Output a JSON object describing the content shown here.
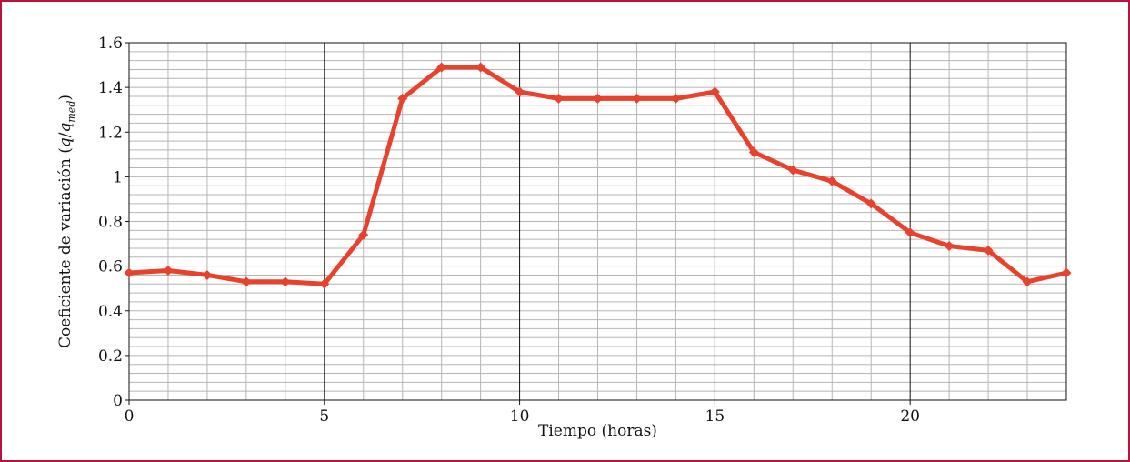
{
  "chart_data": {
    "type": "line",
    "xlabel": "Tiempo (horas)",
    "ylabel": {
      "prefix": "Coeficiente de variación (",
      "q": "q",
      "slash": "/",
      "qmed": "q",
      "sub": "med",
      "suffix": ")"
    },
    "xlim": [
      0,
      24
    ],
    "ylim": [
      0,
      1.6
    ],
    "x_ticks": [
      0,
      5,
      10,
      15,
      20
    ],
    "x_tick_labels": [
      "0",
      "5",
      "10",
      "15",
      "20"
    ],
    "y_ticks": [
      0,
      0.2,
      0.4,
      0.6,
      0.8,
      1.0,
      1.2,
      1.4,
      1.6
    ],
    "y_tick_labels": [
      "0",
      "0.2",
      "0.4",
      "0.6",
      "0.8",
      "1",
      "1.2",
      "1.4",
      "1.6"
    ],
    "grid": true,
    "series": [
      {
        "color": "#e8412c",
        "marker": "diamond",
        "x": [
          0,
          1,
          2,
          3,
          4,
          5,
          6,
          7,
          8,
          9,
          10,
          11,
          12,
          13,
          14,
          15,
          16,
          17,
          18,
          19,
          20,
          21,
          22,
          23,
          24
        ],
        "y": [
          0.57,
          0.58,
          0.56,
          0.53,
          0.53,
          0.52,
          0.74,
          1.35,
          1.49,
          1.49,
          1.38,
          1.35,
          1.35,
          1.35,
          1.35,
          1.38,
          1.11,
          1.03,
          0.98,
          0.88,
          0.75,
          0.69,
          0.67,
          0.53,
          0.57
        ]
      }
    ]
  }
}
